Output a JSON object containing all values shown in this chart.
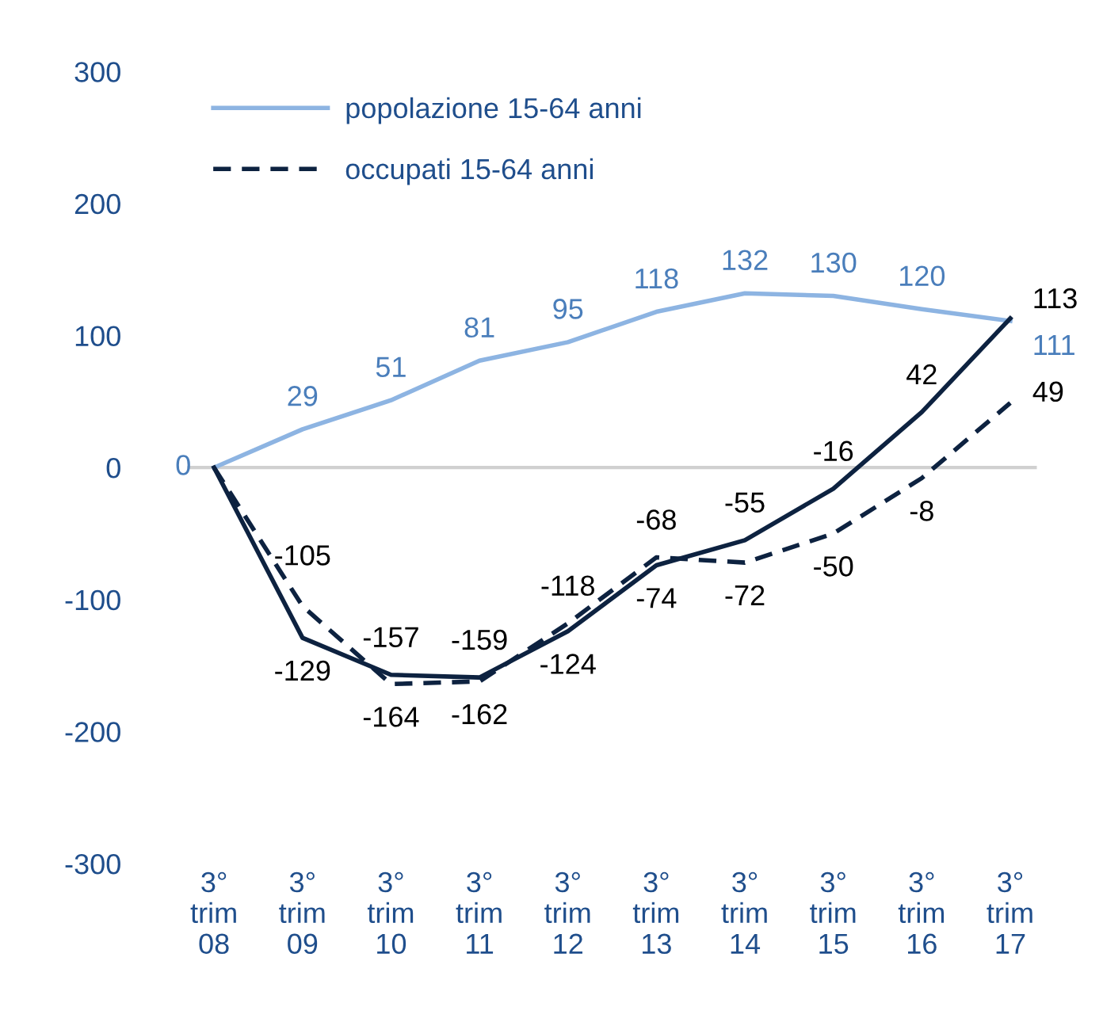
{
  "chart_data": {
    "type": "line",
    "categories": [
      "3°\ntrim\n08",
      "3°\ntrim\n09",
      "3°\ntrim\n10",
      "3°\ntrim\n11",
      "3°\ntrim\n12",
      "3°\ntrim\n13",
      "3°\ntrim\n14",
      "3°\ntrim\n15",
      "3°\ntrim\n16",
      "3°\ntrim\n17"
    ],
    "series": [
      {
        "name": "popolazione 15-64 anni",
        "color": "#8db4e2",
        "line_style": "solid",
        "values": [
          0,
          29,
          51,
          81,
          95,
          118,
          132,
          130,
          120,
          111
        ],
        "value_labels": [
          "0",
          "29",
          "51",
          "81",
          "95",
          "118",
          "132",
          "130",
          "120",
          "111"
        ]
      },
      {
        "name": "occupati 15-64 anni",
        "color": "#0d2240",
        "line_style": "dashed",
        "values": [
          0,
          -105,
          -164,
          -162,
          -118,
          -68,
          -72,
          -50,
          -8,
          49
        ],
        "value_labels": [
          null,
          "-105",
          "-164",
          "-162",
          "-118",
          "-68",
          "-72",
          "-50",
          "-8",
          "49"
        ]
      },
      {
        "color": "#0d2240",
        "line_style": "solid",
        "values": [
          0,
          -129,
          -157,
          -159,
          -124,
          -74,
          -55,
          -16,
          42,
          113
        ],
        "value_labels": [
          null,
          "-129",
          "-157",
          "-159",
          "-124",
          "-74",
          "-55",
          "-16",
          "42",
          "113"
        ]
      }
    ],
    "ylim": [
      -300,
      300
    ],
    "yticks": [
      -300,
      -200,
      -100,
      0,
      100,
      200,
      300
    ],
    "ref_lines": [
      {
        "axis": "y",
        "value": 0,
        "color": "#d0d0d0"
      }
    ],
    "grid": false,
    "legend": "top left",
    "marker": "none"
  }
}
